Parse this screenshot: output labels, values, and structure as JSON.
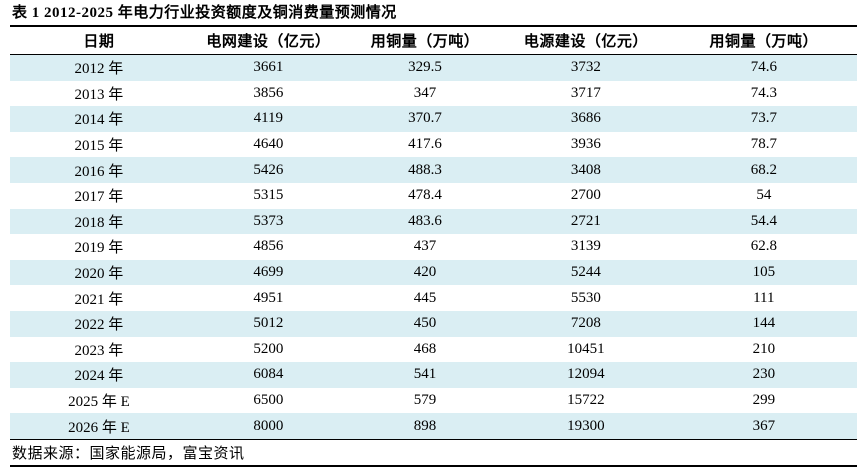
{
  "title": "表 1 2012-2025 年电力行业投资额度及铜消费量预测情况",
  "source_note": "数据来源：国家能源局，富宝资讯",
  "colors": {
    "stripe": "#daeef3",
    "rule": "#000000",
    "text": "#000000",
    "background": "#ffffff"
  },
  "table": {
    "columns": [
      "日期",
      "电网建设（亿元）",
      "用铜量（万吨）",
      "电源建设（亿元）",
      "用铜量（万吨）"
    ],
    "rows": [
      [
        "2012 年",
        "3661",
        "329.5",
        "3732",
        "74.6"
      ],
      [
        "2013 年",
        "3856",
        "347",
        "3717",
        "74.3"
      ],
      [
        "2014 年",
        "4119",
        "370.7",
        "3686",
        "73.7"
      ],
      [
        "2015 年",
        "4640",
        "417.6",
        "3936",
        "78.7"
      ],
      [
        "2016 年",
        "5426",
        "488.3",
        "3408",
        "68.2"
      ],
      [
        "2017 年",
        "5315",
        "478.4",
        "2700",
        "54"
      ],
      [
        "2018 年",
        "5373",
        "483.6",
        "2721",
        "54.4"
      ],
      [
        "2019 年",
        "4856",
        "437",
        "3139",
        "62.8"
      ],
      [
        "2020 年",
        "4699",
        "420",
        "5244",
        "105"
      ],
      [
        "2021 年",
        "4951",
        "445",
        "5530",
        "111"
      ],
      [
        "2022 年",
        "5012",
        "450",
        "7208",
        "144"
      ],
      [
        "2023 年",
        "5200",
        "468",
        "10451",
        "210"
      ],
      [
        "2024 年",
        "6084",
        "541",
        "12094",
        "230"
      ],
      [
        "2025 年 E",
        "6500",
        "579",
        "15722",
        "299"
      ],
      [
        "2026 年 E",
        "8000",
        "898",
        "19300",
        "367"
      ]
    ]
  },
  "chart_data": {
    "type": "table",
    "title": "表 1 2012-2025 年电力行业投资额度及铜消费量预测情况",
    "columns": [
      "日期",
      "电网建设（亿元）",
      "用铜量（万吨）",
      "电源建设（亿元）",
      "用铜量（万吨）"
    ],
    "categories": [
      "2012年",
      "2013年",
      "2014年",
      "2015年",
      "2016年",
      "2017年",
      "2018年",
      "2019年",
      "2020年",
      "2021年",
      "2022年",
      "2023年",
      "2024年",
      "2025年E",
      "2026年E"
    ],
    "series": [
      {
        "name": "电网建设（亿元）",
        "values": [
          3661,
          3856,
          4119,
          4640,
          5426,
          5315,
          5373,
          4856,
          4699,
          4951,
          5012,
          5200,
          6084,
          6500,
          8000
        ]
      },
      {
        "name": "电网用铜量（万吨）",
        "values": [
          329.5,
          347,
          370.7,
          417.6,
          488.3,
          478.4,
          483.6,
          437,
          420,
          445,
          450,
          468,
          541,
          579,
          898
        ]
      },
      {
        "name": "电源建设（亿元）",
        "values": [
          3732,
          3717,
          3686,
          3936,
          3408,
          2700,
          2721,
          3139,
          5244,
          5530,
          7208,
          10451,
          12094,
          15722,
          19300
        ]
      },
      {
        "name": "电源用铜量（万吨）",
        "values": [
          74.6,
          74.3,
          73.7,
          78.7,
          68.2,
          54,
          54.4,
          62.8,
          105,
          111,
          144,
          210,
          230,
          299,
          367
        ]
      }
    ],
    "source_note": "数据来源：国家能源局，富宝资讯",
    "layout": {
      "stripe_rows": "odd rows shaded light blue",
      "grid": "horizontal rules only"
    }
  }
}
